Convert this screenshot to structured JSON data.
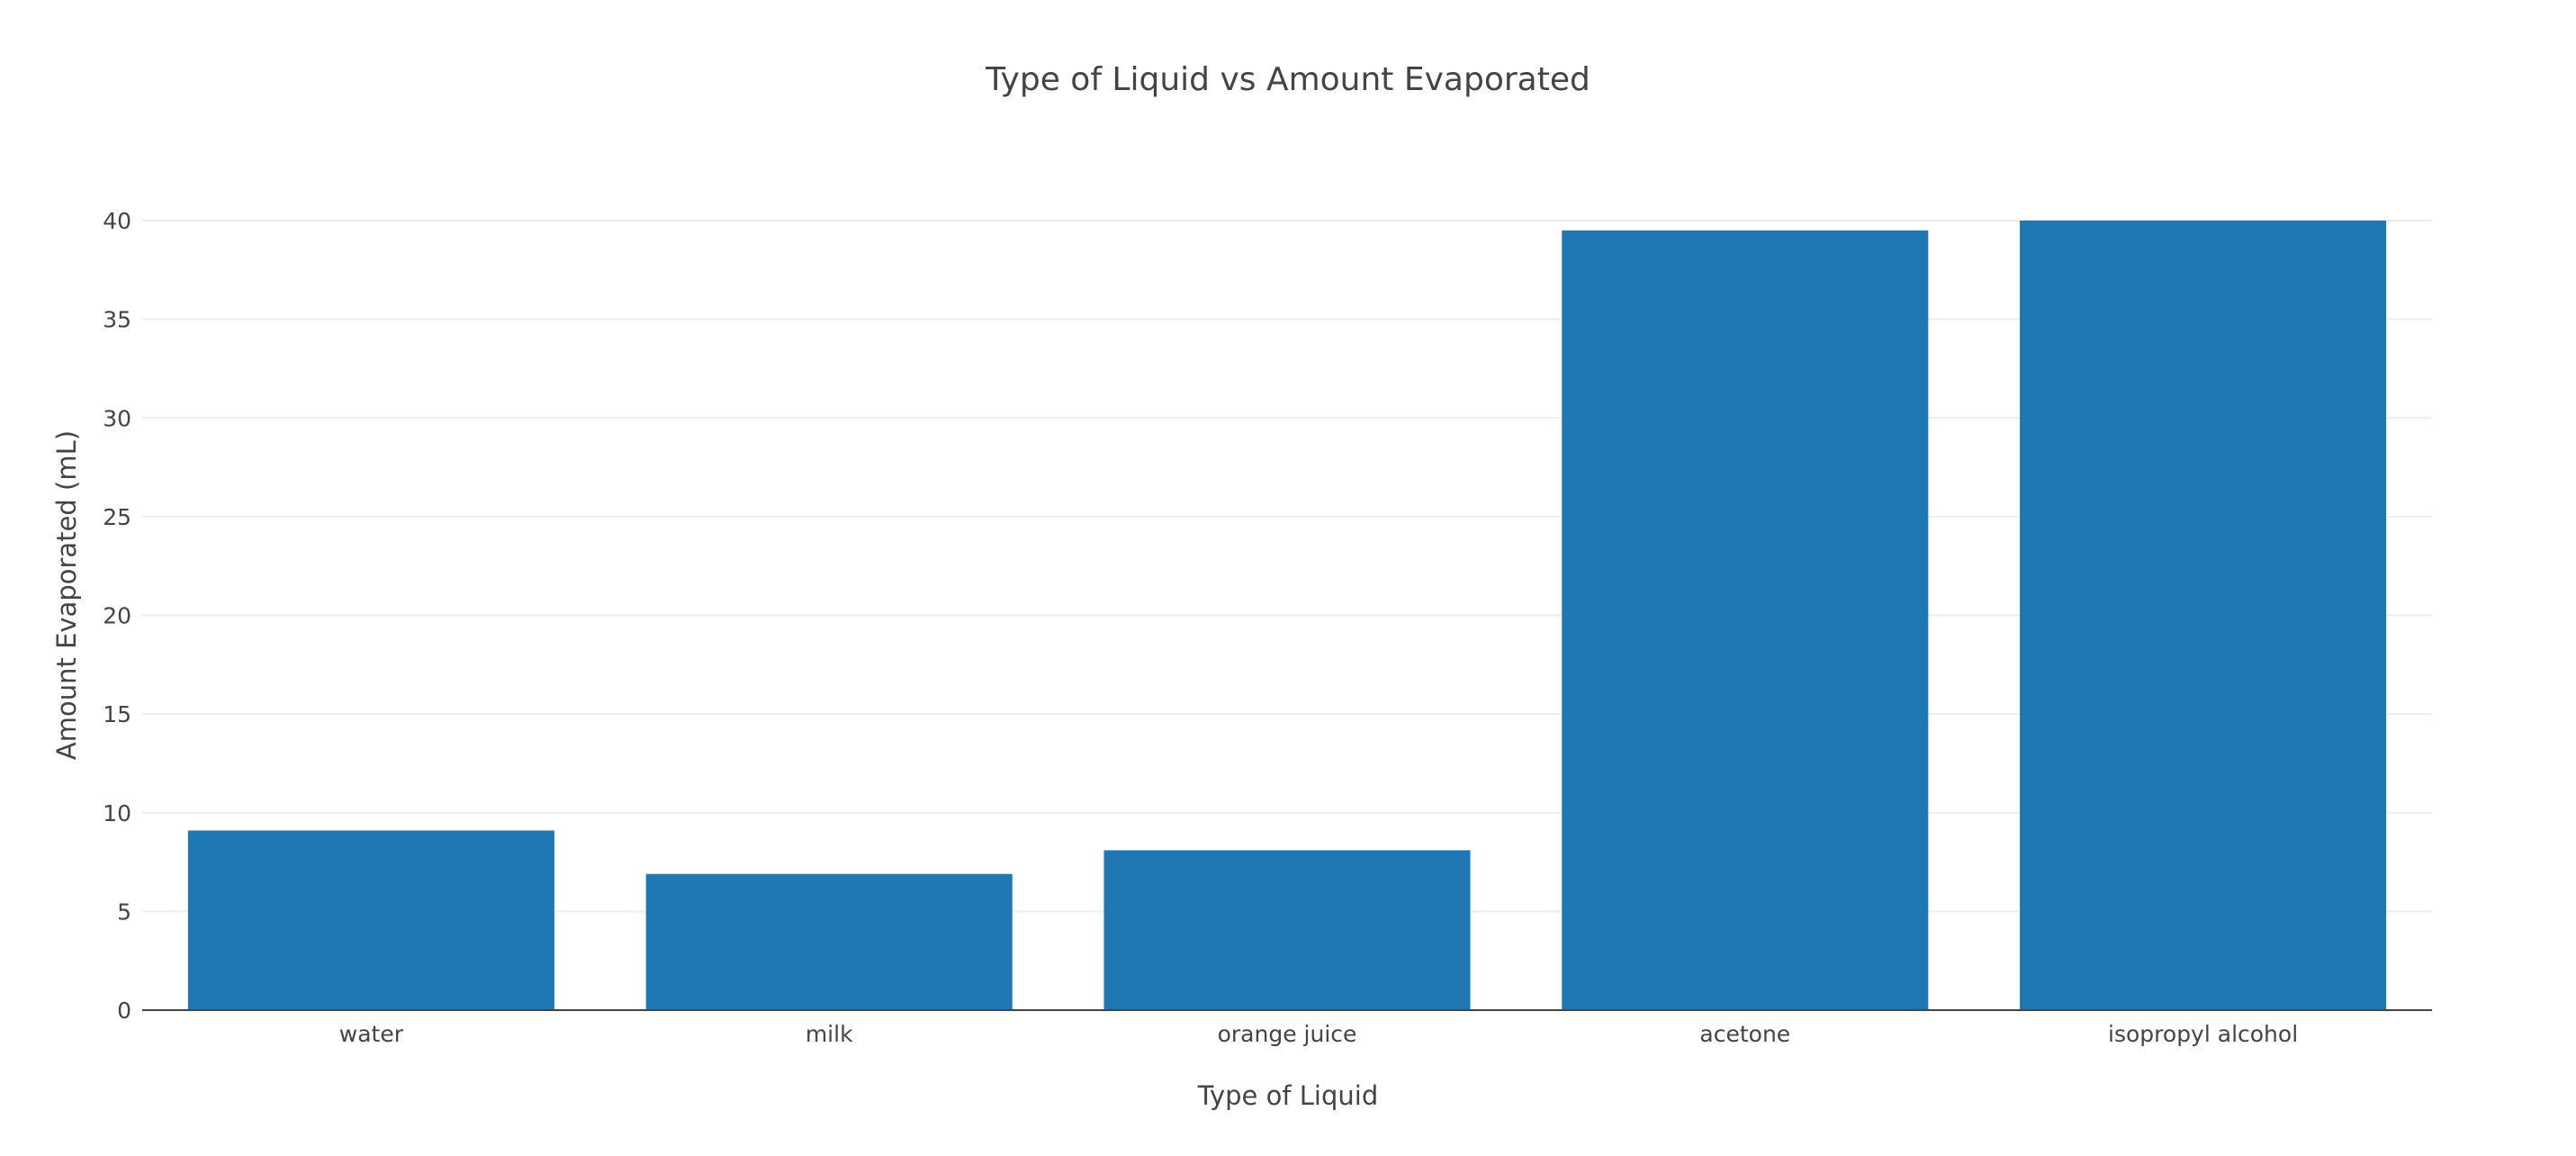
{
  "chart_data": {
    "type": "bar",
    "title": "Type of Liquid vs Amount Evaporated",
    "xlabel": "Type of Liquid",
    "ylabel": "Amount Evaporated (mL)",
    "categories": [
      "water",
      "milk",
      "orange juice",
      "acetone",
      "isopropyl alcohol"
    ],
    "values": [
      9.1,
      6.9,
      8.1,
      39.5,
      40
    ],
    "ylim": [
      0,
      40
    ],
    "yticks": [
      0,
      5,
      10,
      15,
      20,
      25,
      30,
      35,
      40
    ],
    "grid": true,
    "legend": "none",
    "bar_color": "#1f77b4"
  }
}
